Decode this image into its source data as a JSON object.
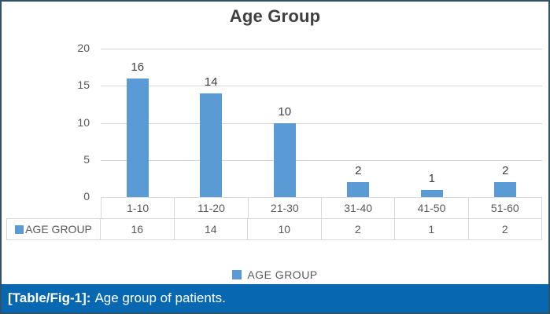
{
  "chart_data": {
    "type": "bar",
    "title": "Age Group",
    "categories": [
      "1-10",
      "11-20",
      "21-30",
      "31-40",
      "41-50",
      "51-60"
    ],
    "series": [
      {
        "name": "AGE GROUP",
        "values": [
          16,
          14,
          10,
          2,
          1,
          2
        ]
      }
    ],
    "ylim": [
      0,
      20
    ],
    "yticks": [
      0,
      5,
      10,
      15,
      20
    ],
    "grid": true,
    "legend_position": "bottom",
    "bar_color": "#5b9bd5",
    "data_table_shown": true
  },
  "caption": {
    "label": "[Table/Fig-1]:",
    "text": "Age group of patients."
  },
  "colors": {
    "bar": "#5b9bd5",
    "caption_background": "#0768b1",
    "outer_border": "#2d5468",
    "gridline": "#d6d6d6",
    "axis_text": "#595959",
    "title_text": "#404040"
  }
}
